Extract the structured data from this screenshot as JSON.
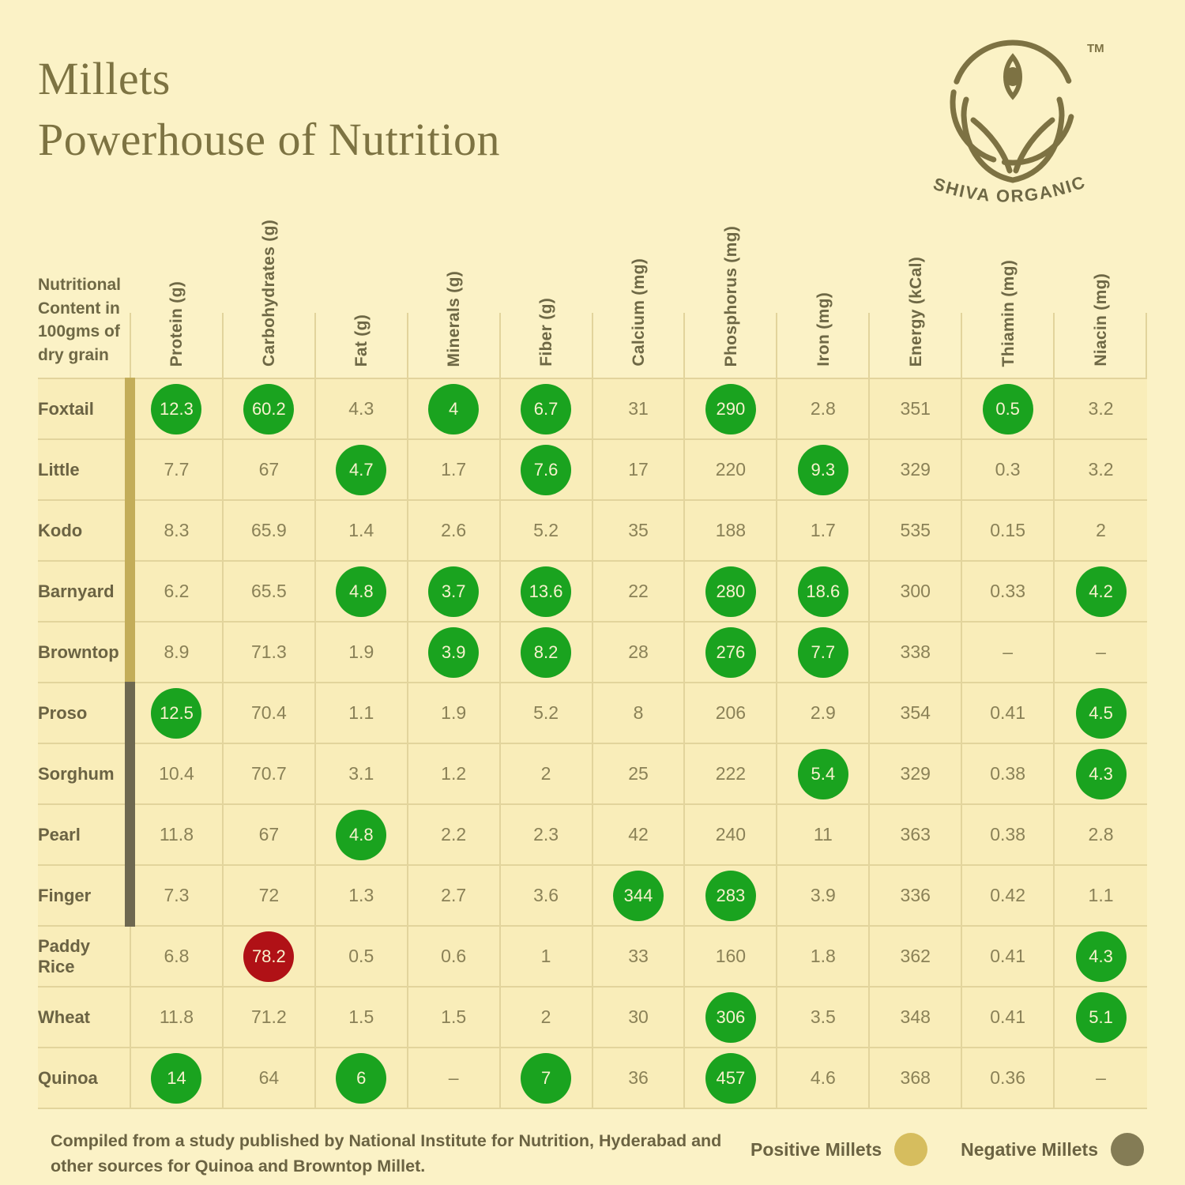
{
  "title": {
    "line1": "Millets",
    "line2": "Powerhouse of Nutrition"
  },
  "brand": {
    "name": "SHIVA ORGANIC",
    "tm": "TM"
  },
  "chart_data": {
    "type": "table",
    "title": "Millets Powerhouse of Nutrition",
    "corner_label": "Nutritional Content in 100gms of dry grain",
    "columns": [
      "Protein (g)",
      "Carbohydrates (g)",
      "Fat (g)",
      "Minerals (g)",
      "Fiber (g)",
      "Calcium (mg)",
      "Phosphorus (mg)",
      "Iron (mg)",
      "Energy (kCal)",
      "Thiamin (mg)",
      "Niacin (mg)"
    ],
    "rows": [
      {
        "label": "Foxtail",
        "group": "positive",
        "values": [
          "12.3",
          "60.2",
          "4.3",
          "4",
          "6.7",
          "31",
          "290",
          "2.8",
          "351",
          "0.5",
          "3.2"
        ],
        "highlight": [
          "green",
          "green",
          "",
          "green",
          "green",
          "",
          "green",
          "",
          "",
          "green",
          ""
        ]
      },
      {
        "label": "Little",
        "group": "positive",
        "values": [
          "7.7",
          "67",
          "4.7",
          "1.7",
          "7.6",
          "17",
          "220",
          "9.3",
          "329",
          "0.3",
          "3.2"
        ],
        "highlight": [
          "",
          "",
          "green",
          "",
          "green",
          "",
          "",
          "green",
          "",
          "",
          ""
        ]
      },
      {
        "label": "Kodo",
        "group": "positive",
        "values": [
          "8.3",
          "65.9",
          "1.4",
          "2.6",
          "5.2",
          "35",
          "188",
          "1.7",
          "535",
          "0.15",
          "2"
        ],
        "highlight": [
          "",
          "",
          "",
          "",
          "",
          "",
          "",
          "",
          "",
          "",
          ""
        ]
      },
      {
        "label": "Barnyard",
        "group": "positive",
        "values": [
          "6.2",
          "65.5",
          "4.8",
          "3.7",
          "13.6",
          "22",
          "280",
          "18.6",
          "300",
          "0.33",
          "4.2"
        ],
        "highlight": [
          "",
          "",
          "green",
          "green",
          "green",
          "",
          "green",
          "green",
          "",
          "",
          "green"
        ]
      },
      {
        "label": "Browntop",
        "group": "positive",
        "values": [
          "8.9",
          "71.3",
          "1.9",
          "3.9",
          "8.2",
          "28",
          "276",
          "7.7",
          "338",
          "–",
          "–"
        ],
        "highlight": [
          "",
          "",
          "",
          "green",
          "green",
          "",
          "green",
          "green",
          "",
          "",
          ""
        ]
      },
      {
        "label": "Proso",
        "group": "negative",
        "values": [
          "12.5",
          "70.4",
          "1.1",
          "1.9",
          "5.2",
          "8",
          "206",
          "2.9",
          "354",
          "0.41",
          "4.5"
        ],
        "highlight": [
          "green",
          "",
          "",
          "",
          "",
          "",
          "",
          "",
          "",
          "",
          "green"
        ]
      },
      {
        "label": "Sorghum",
        "group": "negative",
        "values": [
          "10.4",
          "70.7",
          "3.1",
          "1.2",
          "2",
          "25",
          "222",
          "5.4",
          "329",
          "0.38",
          "4.3"
        ],
        "highlight": [
          "",
          "",
          "",
          "",
          "",
          "",
          "",
          "green",
          "",
          "",
          "green"
        ]
      },
      {
        "label": "Pearl",
        "group": "negative",
        "values": [
          "11.8",
          "67",
          "4.8",
          "2.2",
          "2.3",
          "42",
          "240",
          "11",
          "363",
          "0.38",
          "2.8"
        ],
        "highlight": [
          "",
          "",
          "green",
          "",
          "",
          "",
          "",
          "",
          "",
          "",
          ""
        ]
      },
      {
        "label": "Finger",
        "group": "negative",
        "values": [
          "7.3",
          "72",
          "1.3",
          "2.7",
          "3.6",
          "344",
          "283",
          "3.9",
          "336",
          "0.42",
          "1.1"
        ],
        "highlight": [
          "",
          "",
          "",
          "",
          "",
          "green",
          "green",
          "",
          "",
          "",
          ""
        ]
      },
      {
        "label": "Paddy Rice",
        "group": "none",
        "values": [
          "6.8",
          "78.2",
          "0.5",
          "0.6",
          "1",
          "33",
          "160",
          "1.8",
          "362",
          "0.41",
          "4.3"
        ],
        "highlight": [
          "",
          "red",
          "",
          "",
          "",
          "",
          "",
          "",
          "",
          "",
          "green"
        ]
      },
      {
        "label": "Wheat",
        "group": "none",
        "values": [
          "11.8",
          "71.2",
          "1.5",
          "1.5",
          "2",
          "30",
          "306",
          "3.5",
          "348",
          "0.41",
          "5.1"
        ],
        "highlight": [
          "",
          "",
          "",
          "",
          "",
          "",
          "green",
          "",
          "",
          "",
          "green"
        ]
      },
      {
        "label": "Quinoa",
        "group": "none",
        "values": [
          "14",
          "64",
          "6",
          "–",
          "7",
          "36",
          "457",
          "4.6",
          "368",
          "0.36",
          "–"
        ],
        "highlight": [
          "green",
          "",
          "green",
          "",
          "green",
          "",
          "green",
          "",
          "",
          "",
          ""
        ]
      }
    ]
  },
  "footer": {
    "source": "Compiled from a study published by National Institute for Nutrition, Hyderabad and other sources for Quinoa and Browntop Millet."
  },
  "legend": {
    "positive": "Positive Millets",
    "negative": "Negative Millets"
  },
  "colors": {
    "page_bg": "#FBF2C6",
    "grid": "#E2D49C",
    "highlight_green": "#1AA31F",
    "highlight_red": "#B01116",
    "positive_bar": "#C3AD59",
    "negative_bar": "#6E6850",
    "legend_positive": "#D6BD5E",
    "legend_negative": "#847C55",
    "brand_olive": "#7D7243"
  }
}
